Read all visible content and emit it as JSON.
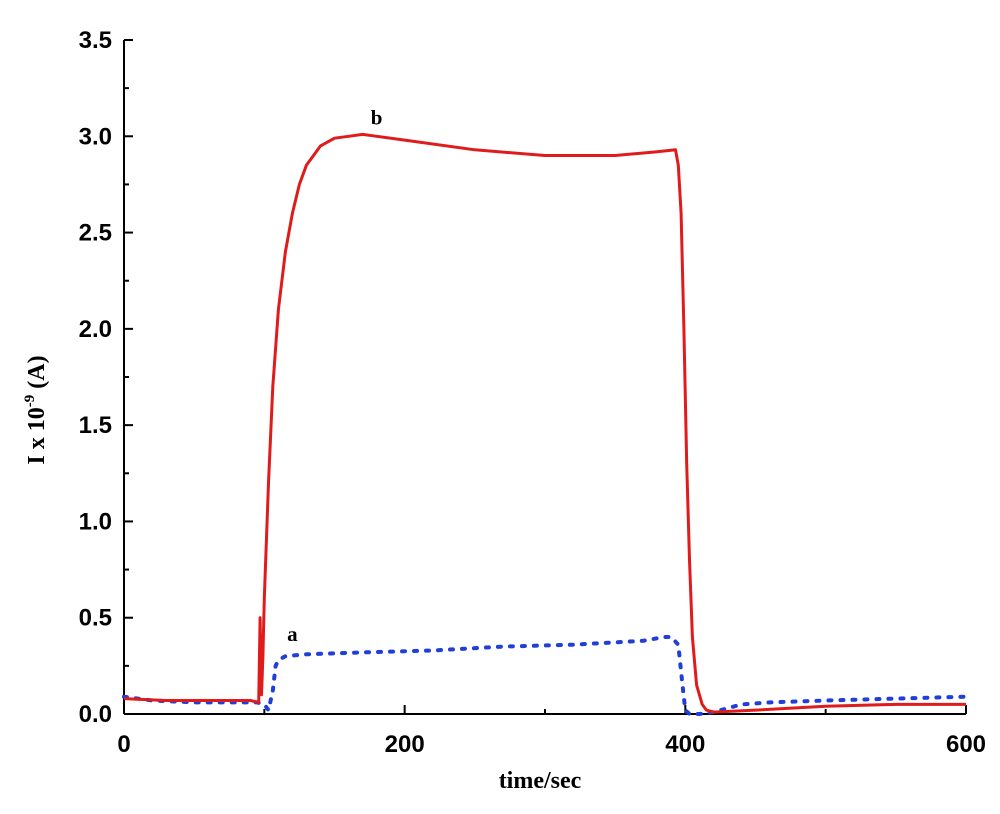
{
  "chart_data": {
    "type": "line",
    "xlabel": "time/sec",
    "ylabel_main": "I x 10",
    "ylabel_exp": "-9",
    "ylabel_unit": " (A)",
    "xlim": [
      0,
      600
    ],
    "ylim": [
      0,
      3.5
    ],
    "x_ticks": [
      0,
      200,
      400,
      600
    ],
    "y_ticks": [
      "0.0",
      "0.5",
      "1.0",
      "1.5",
      "2.0",
      "2.5",
      "3.0",
      "3.5"
    ],
    "grid": false,
    "series": [
      {
        "label": "a",
        "color": "#1f3fd6",
        "style": "dotted",
        "label_at": [
          120,
          0.38
        ],
        "x": [
          0,
          20,
          50,
          80,
          95,
          100,
          103,
          106,
          108,
          110,
          115,
          130,
          170,
          220,
          270,
          320,
          370,
          385,
          390,
          395,
          398,
          400,
          403,
          410,
          420,
          440,
          460,
          500,
          550,
          600
        ],
        "y": [
          0.09,
          0.07,
          0.06,
          0.06,
          0.06,
          0.05,
          0.02,
          0.12,
          0.25,
          0.28,
          0.3,
          0.31,
          0.32,
          0.33,
          0.35,
          0.36,
          0.38,
          0.4,
          0.4,
          0.36,
          0.15,
          0.02,
          0.0,
          0.0,
          0.01,
          0.05,
          0.06,
          0.07,
          0.08,
          0.09
        ]
      },
      {
        "label": "b",
        "color": "#e01b1b",
        "style": "solid",
        "label_at": [
          180,
          3.06
        ],
        "x": [
          0,
          30,
          60,
          90,
          96,
          97,
          98,
          99,
          100,
          103,
          106,
          110,
          115,
          120,
          125,
          130,
          140,
          150,
          160,
          170,
          180,
          200,
          250,
          300,
          350,
          380,
          393,
          395,
          397,
          399,
          401,
          403,
          405,
          408,
          412,
          415,
          420,
          450,
          500,
          550,
          600
        ],
        "y": [
          0.08,
          0.07,
          0.07,
          0.07,
          0.06,
          0.5,
          0.1,
          0.3,
          0.6,
          1.2,
          1.7,
          2.1,
          2.4,
          2.6,
          2.75,
          2.85,
          2.95,
          2.99,
          3.0,
          3.01,
          3.0,
          2.98,
          2.93,
          2.9,
          2.9,
          2.92,
          2.93,
          2.85,
          2.6,
          2.0,
          1.3,
          0.8,
          0.4,
          0.15,
          0.05,
          0.02,
          0.01,
          0.02,
          0.04,
          0.05,
          0.05
        ]
      }
    ]
  }
}
